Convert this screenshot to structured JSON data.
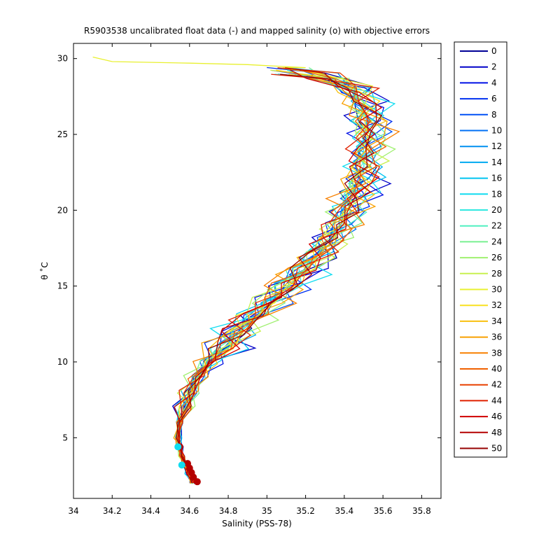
{
  "chart_data": {
    "type": "line",
    "title": "R5903538 uncalibrated float data (-) and mapped salinity (o) with objective errors",
    "xlabel": "Salinity (PSS-78)",
    "ylabel": "θ ˚C",
    "xlim": [
      34.0,
      35.9
    ],
    "ylim": [
      1,
      31
    ],
    "x_ticks": [
      34,
      34.2,
      34.4,
      34.6,
      34.8,
      35,
      35.2,
      35.4,
      35.6,
      35.8
    ],
    "x_tick_labels": [
      "34",
      "34.2",
      "34.4",
      "34.6",
      "34.8",
      "35",
      "35.2",
      "35.4",
      "35.6",
      "35.8"
    ],
    "y_ticks": [
      5,
      10,
      15,
      20,
      25,
      30
    ],
    "y_tick_labels": [
      "5",
      "10",
      "15",
      "20",
      "25",
      "30"
    ],
    "grid": false,
    "legend_position": "outside-right",
    "legend": [
      "0",
      "2",
      "4",
      "6",
      "8",
      "10",
      "12",
      "14",
      "16",
      "18",
      "20",
      "22",
      "24",
      "26",
      "28",
      "30",
      "32",
      "34",
      "36",
      "38",
      "40",
      "42",
      "44",
      "46",
      "48",
      "50"
    ],
    "legend_colors": [
      "#000096",
      "#0000c8",
      "#0010e6",
      "#0030f0",
      "#0050f5",
      "#0070f5",
      "#0090f0",
      "#00aaf0",
      "#00c4f0",
      "#10dcf0",
      "#30e8e0",
      "#50f0c0",
      "#78f090",
      "#a0f070",
      "#c8f050",
      "#e8f030",
      "#f8e020",
      "#f8c010",
      "#f8a000",
      "#f88000",
      "#f06000",
      "#e84000",
      "#e02000",
      "#d00000",
      "#b40000",
      "#960000"
    ],
    "base_profile": [
      [
        34.62,
        2.0
      ],
      [
        34.6,
        2.6
      ],
      [
        34.58,
        3.2
      ],
      [
        34.56,
        3.8
      ],
      [
        34.55,
        4.4
      ],
      [
        34.54,
        5.0
      ],
      [
        34.55,
        6.0
      ],
      [
        34.58,
        7.0
      ],
      [
        34.6,
        8.0
      ],
      [
        34.64,
        9.0
      ],
      [
        34.7,
        10.0
      ],
      [
        34.78,
        11.0
      ],
      [
        34.85,
        12.0
      ],
      [
        34.93,
        13.0
      ],
      [
        35.02,
        14.0
      ],
      [
        35.1,
        15.0
      ],
      [
        35.18,
        16.0
      ],
      [
        35.26,
        17.0
      ],
      [
        35.33,
        18.0
      ],
      [
        35.38,
        19.0
      ],
      [
        35.42,
        20.0
      ],
      [
        35.45,
        21.0
      ],
      [
        35.48,
        22.0
      ],
      [
        35.5,
        23.0
      ],
      [
        35.52,
        24.0
      ],
      [
        35.53,
        25.0
      ],
      [
        35.52,
        26.0
      ],
      [
        35.5,
        27.0
      ],
      [
        35.45,
        28.0
      ],
      [
        35.3,
        28.8
      ],
      [
        35.1,
        29.2
      ]
    ],
    "profile_noise": [
      0.06,
      0.1,
      0.09,
      0.08,
      0.07,
      0.05,
      0.04,
      0.06,
      0.08,
      0.1,
      0.05,
      0.06,
      0.07,
      0.09,
      0.08,
      0.06,
      0.05,
      0.07,
      0.09,
      0.1,
      0.06,
      0.05,
      0.08,
      0.07,
      0.06,
      0.05
    ],
    "surface_excursion": {
      "profile": 15,
      "points": [
        [
          35.2,
          29.4
        ],
        [
          34.9,
          29.6
        ],
        [
          34.6,
          29.7
        ],
        [
          34.2,
          29.8
        ],
        [
          34.1,
          30.1
        ]
      ]
    },
    "mapped_salinity_points": [
      {
        "s": 34.64,
        "t": 2.1,
        "color": "#b40000"
      },
      {
        "s": 34.62,
        "t": 2.4,
        "color": "#b40000"
      },
      {
        "s": 34.61,
        "t": 2.7,
        "color": "#b40000"
      },
      {
        "s": 34.6,
        "t": 3.0,
        "color": "#b40000"
      },
      {
        "s": 34.59,
        "t": 3.3,
        "color": "#b40000"
      },
      {
        "s": 34.55,
        "t": 4.4,
        "color": "#b40000"
      },
      {
        "s": 34.54,
        "t": 4.4,
        "color": "#10dcf0"
      },
      {
        "s": 34.56,
        "t": 3.2,
        "color": "#10dcf0"
      }
    ]
  }
}
